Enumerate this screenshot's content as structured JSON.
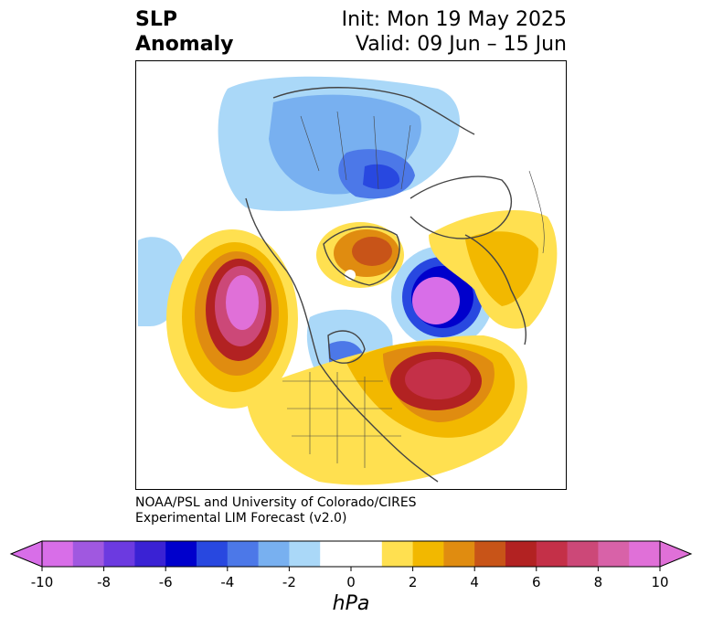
{
  "title": {
    "line1": "SLP",
    "line2": "Anomaly"
  },
  "forecast": {
    "init": "Init: Mon 19 May 2025",
    "valid": "Valid: 09 Jun – 15 Jun"
  },
  "credit": {
    "line1": "NOAA/PSL and University of Colorado/CIRES",
    "line2": "Experimental LIM Forecast (v2.0)"
  },
  "colorbar": {
    "unit": "hPa",
    "tick_labels": [
      "-10",
      "-8",
      "-6",
      "-4",
      "-2",
      "0",
      "2",
      "4",
      "6",
      "8",
      "10"
    ],
    "colors": [
      "#d86ee8",
      "#a058e0",
      "#6c3ae0",
      "#3a22d4",
      "#0000cc",
      "#2848e0",
      "#4c78e8",
      "#78b0f0",
      "#aad8f8",
      "#ffffff",
      "#ffffff",
      "#ffe050",
      "#f2b800",
      "#e08c10",
      "#c85418",
      "#b22222",
      "#c43048",
      "#cc4878",
      "#d862a8",
      "#e070d8"
    ]
  },
  "legend_colors": {
    "neg_strong": "#d86ee8",
    "neg_blue": "#0000cc",
    "neg_light": "#aad8f8",
    "pos_light": "#ffe050",
    "pos_red": "#b22222",
    "pos_strong": "#e070d8"
  }
}
